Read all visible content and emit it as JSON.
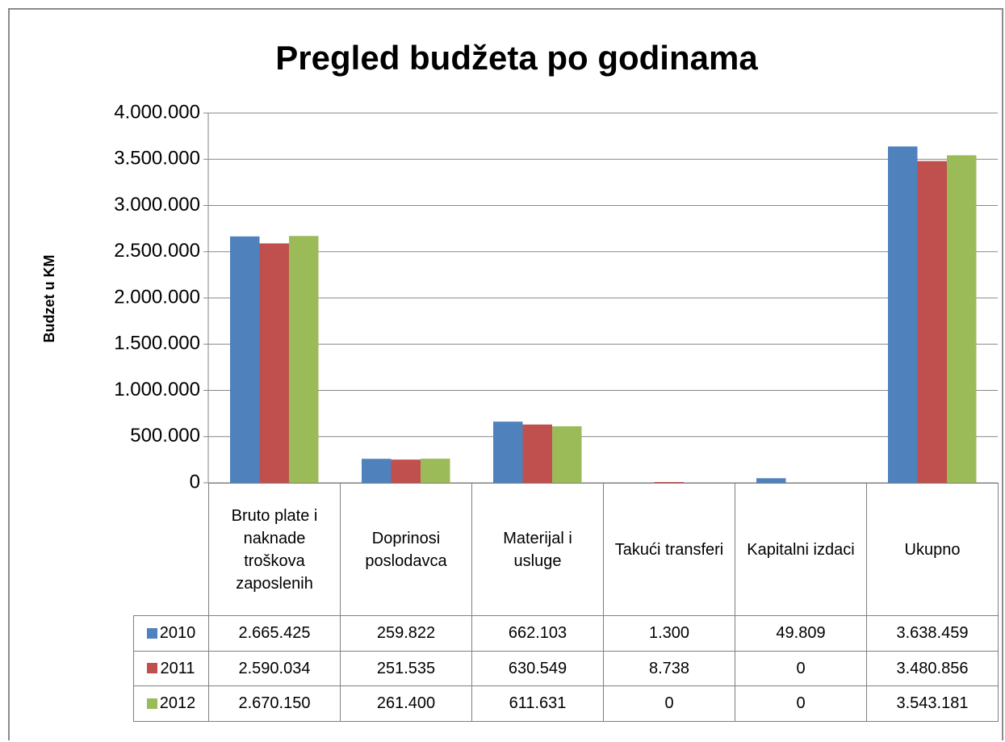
{
  "chart_data": {
    "type": "bar",
    "title": "Pregled budžeta po godinama",
    "y_label": "Budzet u KM",
    "categories": [
      "Bruto plate i naknade troškova zaposlenih",
      "Doprinosi poslodavca",
      "Materijal i usluge",
      "Takući transferi",
      "Kapitalni izdaci",
      "Ukupno"
    ],
    "series": [
      {
        "name": "2010",
        "color": "#4f81bd",
        "values": [
          2665425,
          259822,
          662103,
          1300,
          49809,
          3638459
        ],
        "value_labels": [
          "2.665.425",
          "259.822",
          "662.103",
          "1.300",
          "49.809",
          "3.638.459"
        ]
      },
      {
        "name": "2011",
        "color": "#c0504d",
        "values": [
          2590034,
          251535,
          630549,
          8738,
          0,
          3480856
        ],
        "value_labels": [
          "2.590.034",
          "251.535",
          "630.549",
          "8.738",
          "0",
          "3.480.856"
        ]
      },
      {
        "name": "2012",
        "color": "#9bbb59",
        "values": [
          2670150,
          261400,
          611631,
          0,
          0,
          3543181
        ],
        "value_labels": [
          "2.670.150",
          "261.400",
          "611.631",
          "0",
          "0",
          "3.543.181"
        ]
      }
    ],
    "ylim": [
      0,
      4000000
    ],
    "yticks": [
      0,
      {
        "value": 500000,
        "label": "500.000"
      },
      {
        "value": 1000000,
        "label": "1.000.000"
      },
      {
        "value": 1500000,
        "label": "1.500.000"
      },
      {
        "value": 2000000,
        "label": "2.000.000"
      },
      {
        "value": 2500000,
        "label": "2.500.000"
      },
      {
        "value": 3000000,
        "label": "3.000.000"
      },
      {
        "value": 3500000,
        "label": "3.500.000"
      },
      {
        "value": 4000000,
        "label": "4.000.000"
      }
    ],
    "grid": true
  }
}
